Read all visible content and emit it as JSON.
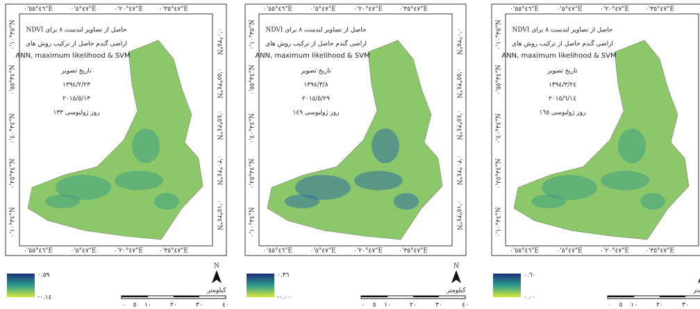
{
  "shared": {
    "title_line_1": "NDVI حاصل از تصاویر لندست ٨ برای",
    "title_line_2": "اراضی گندم حاصل از ترکیب روش های",
    "title_line_3": "ANN, maximum likelihood & SVM",
    "date_heading": "تاریخ تصویر",
    "top_ticks": [
      "٤٦°٥٥'٠\"E",
      "٤٧°٥'٠\"E",
      "٤٧°٢٠'٠\"E",
      "٤٧°٣٥'٠\"E"
    ],
    "bottom_ticks": [
      "٤٦°٥٥'٠\"E",
      "٤٧°٥'٠\"E",
      "٤٧°٢٠'٠\"E",
      "٤٧°٣٥'٠\"E"
    ],
    "left_ticks": [
      "٣٥°١٠'٠\"N",
      "٣٤°٥٥'٠\"N",
      "٣٤°٤٠'٠\"N",
      "٣٤°٢٥'٠\"N",
      "٣٤°١٠'٠\"N"
    ],
    "right_ticks": [
      "٣٥°٠'٠\"N",
      "٣٤°٥٥'٠\"N",
      "٣٤°٤٥'٠\"N",
      "٣٤°٣٠'٠\"N",
      "٣٤°١٥'٠\"N"
    ],
    "north": "N",
    "scale_unit": "کیلومتر",
    "scale_ticks": [
      "٠",
      "٥",
      "١٠",
      "٢٠",
      "٣٠",
      "٤٠"
    ]
  },
  "panels": [
    {
      "persian_date": "١٣٩٤/٢/٢٣",
      "gregorian_date": "٢٠١٥/٥/١٣",
      "julian_day": "روز ژولیوسی ١٣٣",
      "legend_max": "٠.٥٩",
      "legend_min": "-٠.١٤"
    },
    {
      "persian_date": "١٣٩٤/٣/٨",
      "gregorian_date": "٢٠١٥/٥/٢٩",
      "julian_day": "روز ژولیوسی ١٤٩",
      "legend_max": "٠.٣٦",
      "legend_min": "-٠.٠٠"
    },
    {
      "persian_date": "١٣٩٤/٣/٢٤",
      "gregorian_date": "٢٠١٥/٦/١٤",
      "julian_day": "روز ژولیوسی ١٦٥",
      "legend_max": "٠.٦٠",
      "legend_min": "٠.٠٠"
    }
  ]
}
